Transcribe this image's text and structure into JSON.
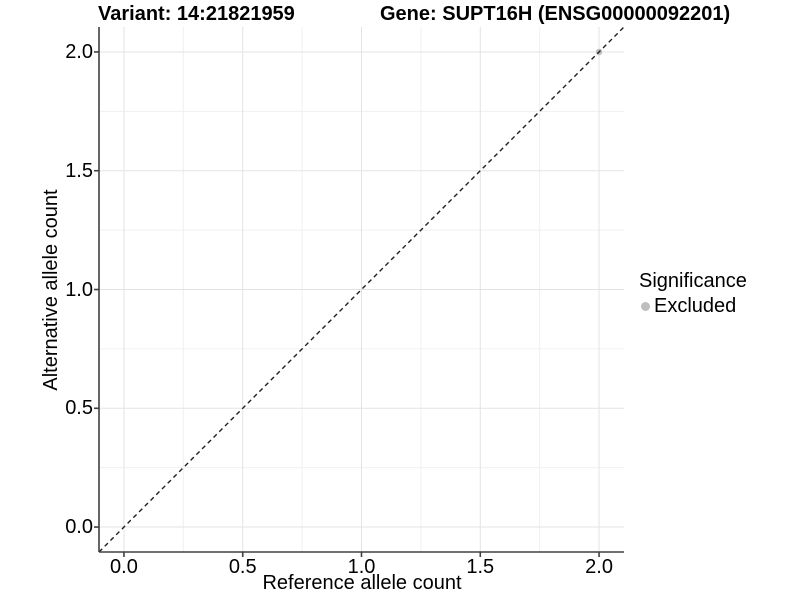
{
  "titles": {
    "variant": "Variant: 14:21821959",
    "gene": "Gene: SUPT16H (ENSG00000092201)"
  },
  "axes": {
    "x_label": "Reference allele count",
    "y_label": "Alternative allele count"
  },
  "legend": {
    "title": "Significance",
    "items": [
      {
        "label": "Excluded",
        "marker_color": "#bebebe"
      }
    ]
  },
  "chart_data": {
    "type": "scatter",
    "title": "Variant: 14:21821959 — Gene: SUPT16H (ENSG00000092201)",
    "xlabel": "Reference allele count",
    "ylabel": "Alternative allele count",
    "xlim": [
      -0.105,
      2.105
    ],
    "ylim": [
      -0.105,
      2.105
    ],
    "x_ticks": [
      "0.0",
      "0.5",
      "1.0",
      "1.5",
      "2.0"
    ],
    "y_ticks": [
      "0.0",
      "0.5",
      "1.0",
      "1.5",
      "2.0"
    ],
    "grid": true,
    "minor_grid": true,
    "legend_position": "right",
    "reference_line": {
      "kind": "identity",
      "slope": 1,
      "intercept": 0,
      "style": "dashed",
      "color": "#1f1f1f"
    },
    "series": [
      {
        "name": "Excluded",
        "color": "#bebebe",
        "points": [
          {
            "x": 2.0,
            "y": 2.0
          }
        ]
      }
    ]
  },
  "colors": {
    "background": "#ffffff",
    "grid_major": "#e3e3e3",
    "grid_minor": "#f0f0f0",
    "axis_line": "#404040",
    "dashed_line": "#1f1f1f",
    "excluded_point": "#bebebe",
    "text": "#000000"
  }
}
